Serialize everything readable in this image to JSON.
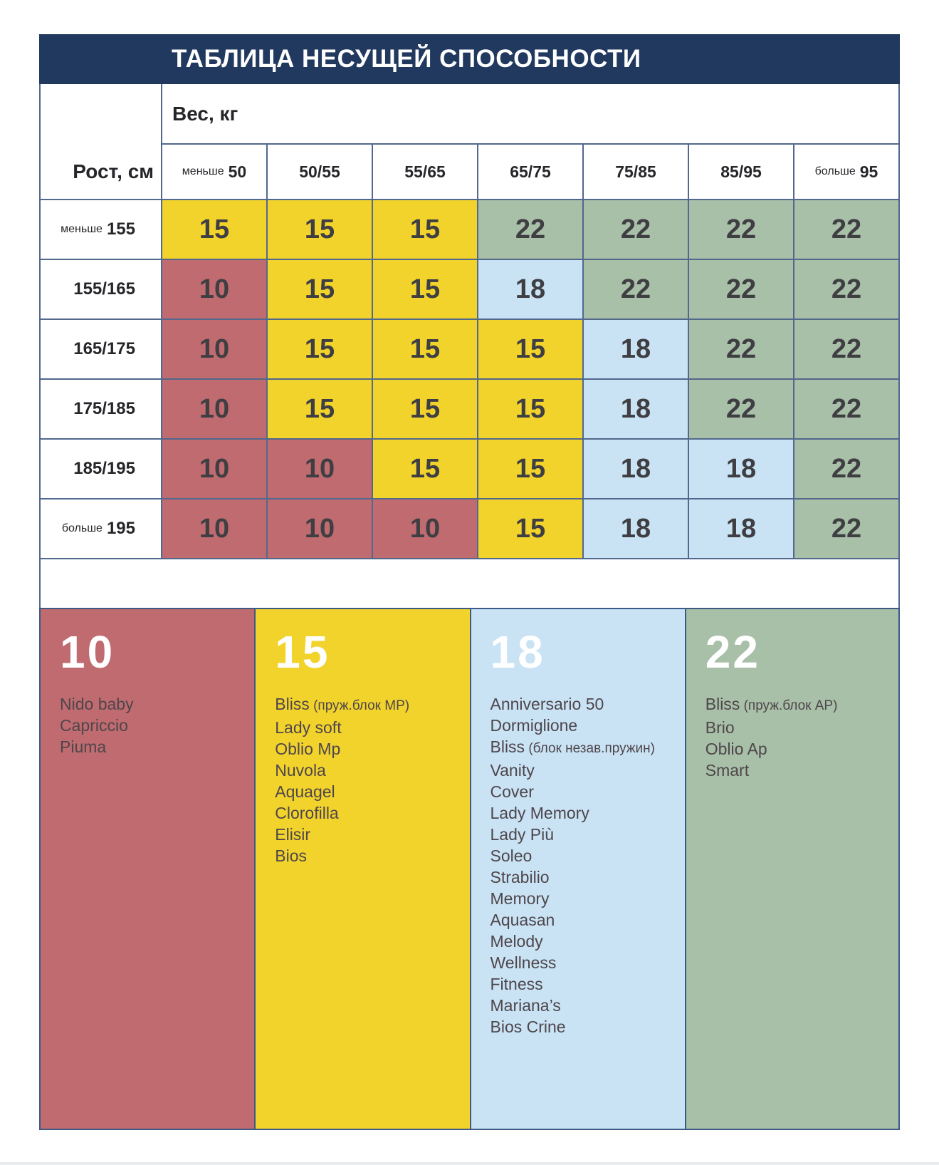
{
  "title": "ТАБЛИЦА НЕСУЩЕЙ СПОСОБНОСТИ",
  "chart_data": {
    "type": "heatmap",
    "title": "ТАБЛИЦА НЕСУЩЕЙ СПОСОБНОСТИ",
    "xlabel": "Вес, кг",
    "ylabel": "Рост, см",
    "x_categories": [
      "меньше 50",
      "50/55",
      "55/65",
      "65/75",
      "75/85",
      "85/95",
      "больше 95"
    ],
    "y_categories": [
      "меньше 155",
      "155/165",
      "165/175",
      "175/185",
      "185/195",
      "больше 195"
    ],
    "values": [
      [
        15,
        15,
        15,
        22,
        22,
        22,
        22
      ],
      [
        10,
        15,
        15,
        18,
        22,
        22,
        22
      ],
      [
        10,
        15,
        15,
        15,
        18,
        22,
        22
      ],
      [
        10,
        15,
        15,
        15,
        18,
        22,
        22
      ],
      [
        10,
        10,
        15,
        15,
        18,
        18,
        22
      ],
      [
        10,
        10,
        10,
        15,
        18,
        18,
        22
      ]
    ],
    "value_colors": {
      "10": "#bf6b70",
      "15": "#f2d32c",
      "18": "#c9e3f5",
      "22": "#a8bfa8"
    },
    "grid": true,
    "legend_position": "bottom"
  },
  "legend": [
    {
      "value": "10",
      "color": "#bf6b70",
      "items": [
        {
          "name": "Nido baby",
          "note": ""
        },
        {
          "name": "Capriccio",
          "note": ""
        },
        {
          "name": "Piuma",
          "note": ""
        }
      ]
    },
    {
      "value": "15",
      "color": "#f2d32c",
      "items": [
        {
          "name": "Bliss",
          "note": "(пруж.блок MP)"
        },
        {
          "name": "Lady soft",
          "note": ""
        },
        {
          "name": "Oblio Mp",
          "note": ""
        },
        {
          "name": "Nuvola",
          "note": ""
        },
        {
          "name": "Aquagel",
          "note": ""
        },
        {
          "name": "Clorofilla",
          "note": ""
        },
        {
          "name": "Elisir",
          "note": ""
        },
        {
          "name": "Bios",
          "note": ""
        }
      ]
    },
    {
      "value": "18",
      "color": "#c9e3f5",
      "items": [
        {
          "name": "Anniversario 50",
          "note": ""
        },
        {
          "name": "Dormiglione",
          "note": ""
        },
        {
          "name": "Bliss",
          "note": "(блок незав.пружин)"
        },
        {
          "name": "Vanity",
          "note": ""
        },
        {
          "name": "Cover",
          "note": ""
        },
        {
          "name": "Lady Memory",
          "note": ""
        },
        {
          "name": "Lady Più",
          "note": ""
        },
        {
          "name": "Soleo",
          "note": ""
        },
        {
          "name": "Strabilio",
          "note": ""
        },
        {
          "name": "Memory",
          "note": ""
        },
        {
          "name": "Aquasan",
          "note": ""
        },
        {
          "name": "Melody",
          "note": ""
        },
        {
          "name": "Wellness",
          "note": ""
        },
        {
          "name": "Fitness",
          "note": ""
        },
        {
          "name": "Mariana’s",
          "note": ""
        },
        {
          "name": "Bios Crine",
          "note": ""
        }
      ]
    },
    {
      "value": "22",
      "color": "#a8bfa8",
      "items": [
        {
          "name": "Bliss",
          "note": "(пруж.блок AP)"
        },
        {
          "name": "Brio",
          "note": ""
        },
        {
          "name": "Oblio Ap",
          "note": ""
        },
        {
          "name": "Smart",
          "note": ""
        }
      ]
    }
  ]
}
